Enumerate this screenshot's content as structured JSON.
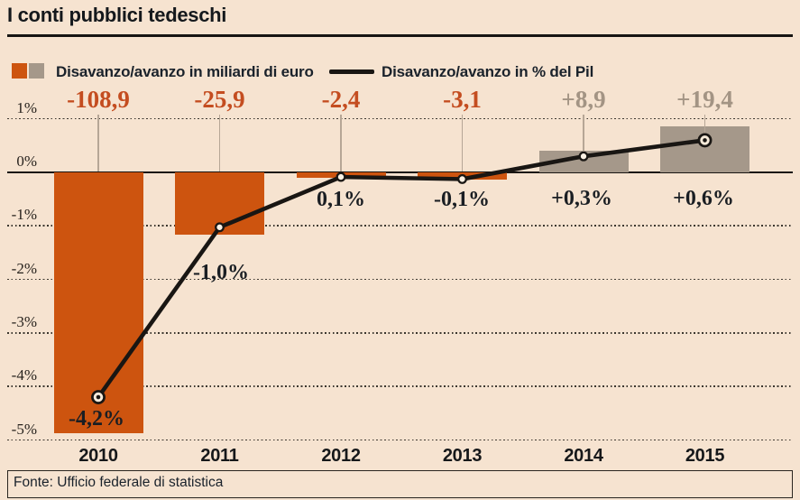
{
  "title": "I conti pubblici tedeschi",
  "legend": {
    "bars_label": "Disavanzo/avanzo in miliardi di euro",
    "line_label": "Disavanzo/avanzo in % del Pil"
  },
  "source": "Fonte: Ufficio federale di statistica",
  "colors": {
    "background": "#f6e3d0",
    "bar_negative": "#cd540f",
    "bar_positive": "#a5988a",
    "value_label_negative": "#c44d20",
    "value_label_positive": "#a39484",
    "line": "#191613",
    "text_dark": "#1a1e23",
    "gridline": "#3c372f",
    "callout": "#b6a696"
  },
  "chart_data": {
    "type": "bar",
    "subtype": "bar-and-line combo",
    "categories": [
      "2010",
      "2011",
      "2012",
      "2013",
      "2014",
      "2015"
    ],
    "series": [
      {
        "name": "Disavanzo/avanzo in miliardi di euro",
        "type": "bar",
        "unit": "miliardi di euro",
        "values": [
          -108.9,
          -25.9,
          -2.4,
          -3.1,
          8.9,
          19.4
        ],
        "value_labels": [
          "-108,9",
          "-25,9",
          "-2,4",
          "-3,1",
          "+8,9",
          "+19,4"
        ]
      },
      {
        "name": "Disavanzo/avanzo in % del Pil",
        "type": "line",
        "unit": "% del Pil",
        "values": [
          -4.2,
          -1.0,
          0.1,
          -0.1,
          0.3,
          0.6
        ],
        "value_labels": [
          "-4,2%",
          "-1,0%",
          "0,1%",
          "-0,1%",
          "+0,3%",
          "+0,6%"
        ]
      }
    ],
    "y_axis": {
      "ticks": [
        {
          "label": "1%",
          "value": 1
        },
        {
          "label": "0%",
          "value": 0
        },
        {
          "label": "-1%",
          "value": -1
        },
        {
          "label": "-2%",
          "value": -2
        },
        {
          "label": "-3%",
          "value": -3
        },
        {
          "label": "-4%",
          "value": -4
        },
        {
          "label": "-5%",
          "value": -5
        }
      ],
      "range": [
        -5,
        1
      ],
      "grid": "dotted horizontal lines, solid zero line"
    },
    "legend_position": "top"
  }
}
